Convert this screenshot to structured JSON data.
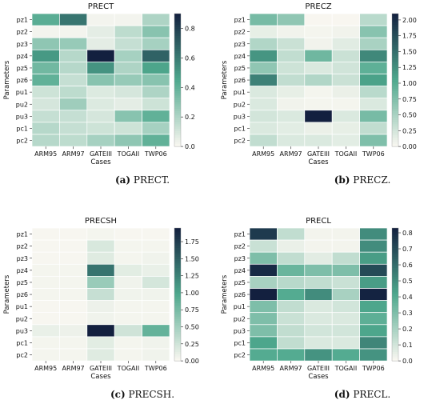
{
  "colors": {
    "low": "#fbf8f2",
    "mid": "#4ea88d",
    "high": "#13203f"
  },
  "chart_data": [
    {
      "type": "heatmap",
      "title": "PRECT",
      "xlabel": "Cases",
      "ylabel": "Parameters",
      "caption_label": "(a)",
      "caption_text": " PRECT.",
      "x": [
        "ARM95",
        "ARM97",
        "GATEIII",
        "TOGAII",
        "TWP06"
      ],
      "y": [
        "pz1",
        "pz2",
        "pz3",
        "pz4",
        "pz5",
        "pz6",
        "pu1",
        "pu2",
        "pu3",
        "pc1",
        "pc2"
      ],
      "vmin": 0,
      "vmax": 0.9,
      "colorbar_ticks": [
        0.0,
        0.2,
        0.4,
        0.6,
        0.8
      ],
      "colorbar_labels": [
        "0.0",
        "0.2",
        "0.4",
        "0.6",
        "0.8"
      ],
      "values": [
        [
          0.42,
          0.62,
          0.02,
          0.02,
          0.2
        ],
        [
          0.02,
          0.02,
          0.06,
          0.16,
          0.3
        ],
        [
          0.28,
          0.26,
          0.06,
          0.14,
          0.22
        ],
        [
          0.5,
          0.18,
          0.9,
          0.22,
          0.68
        ],
        [
          0.36,
          0.18,
          0.52,
          0.2,
          0.46
        ],
        [
          0.4,
          0.14,
          0.3,
          0.26,
          0.3
        ],
        [
          0.12,
          0.16,
          0.08,
          0.1,
          0.2
        ],
        [
          0.1,
          0.24,
          0.08,
          0.06,
          0.12
        ],
        [
          0.14,
          0.14,
          0.1,
          0.3,
          0.4
        ],
        [
          0.18,
          0.14,
          0.12,
          0.12,
          0.22
        ],
        [
          0.18,
          0.16,
          0.22,
          0.28,
          0.4
        ]
      ]
    },
    {
      "type": "heatmap",
      "title": "PRECZ",
      "xlabel": "Cases",
      "ylabel": "Parameters",
      "caption_label": "(b)",
      "caption_text": " PRECZ.",
      "x": [
        "ARM95",
        "ARM97",
        "GATEIII",
        "TOGAII",
        "TWP06"
      ],
      "y": [
        "pz1",
        "pz2",
        "pz3",
        "pz4",
        "pz5",
        "pz6",
        "pu1",
        "pu2",
        "pu3",
        "pc1",
        "pc2"
      ],
      "vmin": 0,
      "vmax": 2.1,
      "colorbar_ticks": [
        0.0,
        0.25,
        0.5,
        0.75,
        1.0,
        1.25,
        1.5,
        1.75,
        2.0
      ],
      "colorbar_labels": [
        "0.00",
        "0.25",
        "0.50",
        "0.75",
        "1.00",
        "1.25",
        "1.50",
        "1.75",
        "2.00"
      ],
      "values": [
        [
          0.8,
          0.65,
          0.02,
          0.02,
          0.4
        ],
        [
          0.12,
          0.06,
          0.04,
          0.06,
          0.7
        ],
        [
          0.45,
          0.3,
          0.06,
          0.16,
          0.5
        ],
        [
          1.2,
          0.35,
          0.85,
          0.3,
          1.3
        ],
        [
          0.65,
          0.28,
          0.2,
          0.26,
          0.95
        ],
        [
          1.35,
          0.35,
          0.45,
          0.3,
          1.1
        ],
        [
          0.2,
          0.12,
          0.04,
          0.1,
          0.4
        ],
        [
          0.2,
          0.06,
          0.04,
          0.04,
          0.2
        ],
        [
          0.25,
          0.2,
          2.1,
          0.2,
          0.8
        ],
        [
          0.2,
          0.15,
          0.1,
          0.12,
          0.35
        ],
        [
          0.35,
          0.2,
          0.2,
          0.15,
          0.75
        ]
      ]
    },
    {
      "type": "heatmap",
      "title": "PRECSH",
      "xlabel": "Cases",
      "ylabel": "Parameters",
      "caption_label": "(c)",
      "caption_text": " PRECSH.",
      "x": [
        "ARM95",
        "ARM97",
        "GATEIII",
        "TOGAII",
        "TWP06"
      ],
      "y": [
        "pz1",
        "pz2",
        "pz3",
        "pz4",
        "pz5",
        "pz6",
        "pu1",
        "pu2",
        "pu3",
        "pc1",
        "pc2"
      ],
      "vmin": 0,
      "vmax": 1.95,
      "colorbar_ticks": [
        0.0,
        0.25,
        0.5,
        0.75,
        1.0,
        1.25,
        1.5,
        1.75
      ],
      "colorbar_labels": [
        "0.00",
        "0.25",
        "0.50",
        "0.75",
        "1.00",
        "1.25",
        "1.50",
        "1.75"
      ],
      "values": [
        [
          0.02,
          0.02,
          0.04,
          0.02,
          0.02
        ],
        [
          0.02,
          0.02,
          0.2,
          0.04,
          0.04
        ],
        [
          0.02,
          0.02,
          0.16,
          0.04,
          0.06
        ],
        [
          0.04,
          0.04,
          1.35,
          0.14,
          0.1
        ],
        [
          0.04,
          0.04,
          0.55,
          0.06,
          0.22
        ],
        [
          0.04,
          0.04,
          0.3,
          0.06,
          0.06
        ],
        [
          0.02,
          0.02,
          0.08,
          0.04,
          0.04
        ],
        [
          0.02,
          0.02,
          0.06,
          0.04,
          0.04
        ],
        [
          0.1,
          0.08,
          1.95,
          0.25,
          0.85
        ],
        [
          0.04,
          0.04,
          0.14,
          0.04,
          0.06
        ],
        [
          0.04,
          0.04,
          0.16,
          0.04,
          0.06
        ]
      ]
    },
    {
      "type": "heatmap",
      "title": "PRECL",
      "xlabel": "Cases",
      "ylabel": "Parameters",
      "caption_label": "(d)",
      "caption_text": " PRECL.",
      "x": [
        "ARM95",
        "ARM97",
        "GATEIII",
        "TOGAII",
        "TWP06"
      ],
      "y": [
        "pz1",
        "pz2",
        "pz3",
        "pz4",
        "pz5",
        "pz6",
        "pu1",
        "pu2",
        "pu3",
        "pc1",
        "pc2"
      ],
      "vmin": 0,
      "vmax": 0.83,
      "colorbar_ticks": [
        0.0,
        0.1,
        0.2,
        0.3,
        0.4,
        0.5,
        0.6,
        0.7,
        0.8
      ],
      "colorbar_labels": [
        "0.0",
        "0.1",
        "0.2",
        "0.3",
        "0.4",
        "0.5",
        "0.6",
        "0.7",
        "0.8"
      ],
      "values": [
        [
          0.75,
          0.14,
          0.02,
          0.02,
          0.5
        ],
        [
          0.12,
          0.04,
          0.02,
          0.02,
          0.5
        ],
        [
          0.3,
          0.14,
          0.06,
          0.14,
          0.45
        ],
        [
          0.8,
          0.35,
          0.3,
          0.3,
          0.7
        ],
        [
          0.2,
          0.16,
          0.14,
          0.12,
          0.45
        ],
        [
          0.83,
          0.4,
          0.5,
          0.2,
          0.82
        ],
        [
          0.3,
          0.14,
          0.08,
          0.1,
          0.42
        ],
        [
          0.3,
          0.12,
          0.08,
          0.08,
          0.38
        ],
        [
          0.3,
          0.14,
          0.1,
          0.1,
          0.42
        ],
        [
          0.42,
          0.14,
          0.08,
          0.08,
          0.52
        ],
        [
          0.4,
          0.4,
          0.48,
          0.4,
          0.48
        ]
      ]
    }
  ]
}
